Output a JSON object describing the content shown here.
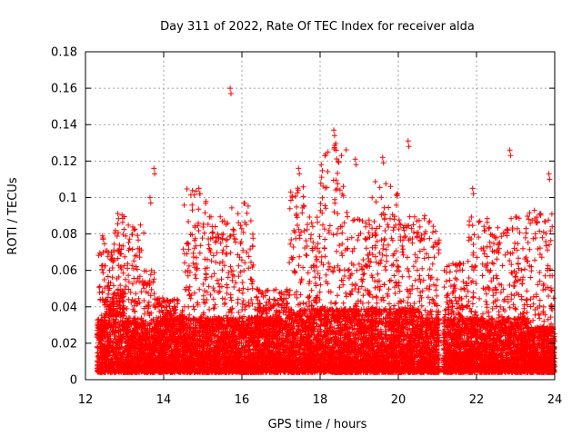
{
  "chart_data": {
    "type": "scatter",
    "title": "Day 311 of 2022, Rate Of TEC Index for receiver alda",
    "xlabel": "GPS time / hours",
    "ylabel": "ROTI / TECUs",
    "xlim": [
      12,
      24
    ],
    "ylim": [
      0,
      0.18
    ],
    "x_ticks": [
      "12",
      "14",
      "16",
      "18",
      "20",
      "22",
      "24"
    ],
    "y_ticks": [
      "0",
      "0.02",
      "0.04",
      "0.06",
      "0.08",
      "0.1",
      "0.12",
      "0.14",
      "0.16",
      "0.18"
    ],
    "grid": true,
    "marker": "+",
    "series_color": "#ff0000",
    "highlighted_points": [
      {
        "x": 15.7,
        "y": 0.16
      },
      {
        "x": 18.35,
        "y": 0.137
      },
      {
        "x": 20.25,
        "y": 0.131
      },
      {
        "x": 22.85,
        "y": 0.126
      },
      {
        "x": 19.6,
        "y": 0.122
      },
      {
        "x": 18.9,
        "y": 0.121
      },
      {
        "x": 13.75,
        "y": 0.116
      },
      {
        "x": 17.45,
        "y": 0.116
      },
      {
        "x": 23.85,
        "y": 0.113
      },
      {
        "x": 21.9,
        "y": 0.105
      },
      {
        "x": 14.9,
        "y": 0.105
      },
      {
        "x": 13.65,
        "y": 0.1
      }
    ],
    "envelopes": [
      {
        "x_start": 12.3,
        "x_end": 12.5,
        "base_max": 0.03,
        "peak": 0.08
      },
      {
        "x_start": 12.5,
        "x_end": 12.75,
        "base_max": 0.04,
        "peak": 0.075
      },
      {
        "x_start": 12.75,
        "x_end": 13.0,
        "base_max": 0.045,
        "peak": 0.1
      },
      {
        "x_start": 13.0,
        "x_end": 13.5,
        "base_max": 0.03,
        "peak": 0.085
      },
      {
        "x_start": 13.5,
        "x_end": 13.8,
        "base_max": 0.025,
        "peak": 0.06
      },
      {
        "x_start": 13.8,
        "x_end": 14.5,
        "base_max": 0.03,
        "peak": 0.045
      },
      {
        "x_start": 14.5,
        "x_end": 15.1,
        "base_max": 0.03,
        "peak": 0.106
      },
      {
        "x_start": 15.1,
        "x_end": 15.6,
        "base_max": 0.03,
        "peak": 0.09
      },
      {
        "x_start": 15.6,
        "x_end": 16.3,
        "base_max": 0.03,
        "peak": 0.098
      },
      {
        "x_start": 16.3,
        "x_end": 17.2,
        "base_max": 0.03,
        "peak": 0.05
      },
      {
        "x_start": 17.2,
        "x_end": 17.6,
        "base_max": 0.035,
        "peak": 0.11
      },
      {
        "x_start": 17.6,
        "x_end": 18.0,
        "base_max": 0.035,
        "peak": 0.09
      },
      {
        "x_start": 18.0,
        "x_end": 18.7,
        "base_max": 0.035,
        "peak": 0.13
      },
      {
        "x_start": 18.7,
        "x_end": 19.3,
        "base_max": 0.035,
        "peak": 0.09
      },
      {
        "x_start": 19.3,
        "x_end": 20.0,
        "base_max": 0.035,
        "peak": 0.11
      },
      {
        "x_start": 20.0,
        "x_end": 20.6,
        "base_max": 0.035,
        "peak": 0.09
      },
      {
        "x_start": 20.6,
        "x_end": 21.05,
        "base_max": 0.03,
        "peak": 0.09
      },
      {
        "x_start": 21.15,
        "x_end": 21.8,
        "base_max": 0.03,
        "peak": 0.065
      },
      {
        "x_start": 21.8,
        "x_end": 22.3,
        "base_max": 0.03,
        "peak": 0.09
      },
      {
        "x_start": 22.3,
        "x_end": 22.8,
        "base_max": 0.03,
        "peak": 0.085
      },
      {
        "x_start": 22.8,
        "x_end": 23.3,
        "base_max": 0.03,
        "peak": 0.09
      },
      {
        "x_start": 23.3,
        "x_end": 24.0,
        "base_max": 0.025,
        "peak": 0.093
      }
    ]
  }
}
